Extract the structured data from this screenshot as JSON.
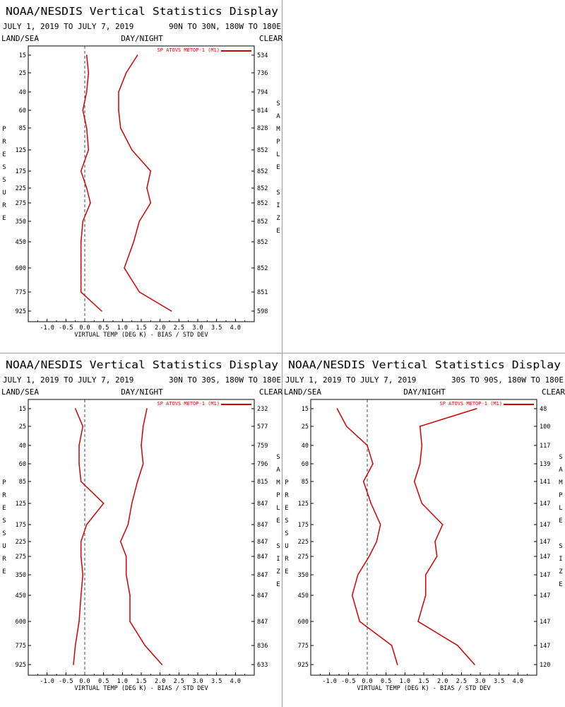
{
  "panels": [
    {
      "header_title": "NOAA/NESDIS Vertical Statistics Display",
      "date_range": "JULY 1, 2019 TO JULY 7, 2019",
      "region": "90N TO 30N, 180W TO 180E",
      "label_land_sea": "LAND/SEA",
      "label_day_night": "DAY/NIGHT",
      "label_clear": "CLEAR",
      "legend": "SP ATOVS METOP-1 (M1)",
      "left_axis_title": [
        "P",
        "R",
        "E",
        "S",
        "S",
        "U",
        "R",
        "E"
      ],
      "right_axis_title": [
        "S",
        "A",
        "M",
        "P",
        "L",
        "E",
        "",
        "S",
        "I",
        "Z",
        "E"
      ],
      "x_axis_title": "VIRTUAL TEMP (DEG K) - BIAS / STD DEV",
      "colors": {
        "series": "#d40000",
        "axes": "#000000",
        "zero_line": "#444444"
      }
    },
    {
      "header_title": "NOAA/NESDIS Vertical Statistics Display",
      "date_range": "JULY 1, 2019 TO JULY 7, 2019",
      "region": "30N TO 30S, 180W TO 180E",
      "label_land_sea": "LAND/SEA",
      "label_day_night": "DAY/NIGHT",
      "label_clear": "CLEAR",
      "legend": "SP ATOVS METOP-1 (M1)",
      "left_axis_title": [
        "P",
        "R",
        "E",
        "S",
        "S",
        "U",
        "R",
        "E"
      ],
      "right_axis_title": [
        "S",
        "A",
        "M",
        "P",
        "L",
        "E",
        "",
        "S",
        "I",
        "Z",
        "E"
      ],
      "x_axis_title": "VIRTUAL TEMP (DEG K) - BIAS / STD DEV",
      "colors": {
        "series": "#d40000",
        "axes": "#000000",
        "zero_line": "#444444"
      }
    },
    {
      "header_title": "NOAA/NESDIS Vertical Statistics Display",
      "date_range": "JULY 1, 2019 TO JULY 7, 2019",
      "region": "30S TO 90S, 180W TO 180E",
      "label_land_sea": "LAND/SEA",
      "label_day_night": "DAY/NIGHT",
      "label_clear": "CLEAR",
      "legend": "SP ATOVS METOP-1 (M1)",
      "left_axis_title": [
        "P",
        "R",
        "E",
        "S",
        "S",
        "U",
        "R",
        "E"
      ],
      "right_axis_title": [
        "S",
        "A",
        "M",
        "P",
        "L",
        "E",
        "",
        "S",
        "I",
        "Z",
        "E"
      ],
      "x_axis_title": "VIRTUAL TEMP (DEG K) - BIAS / STD DEV",
      "colors": {
        "series": "#d40000",
        "axes": "#000000",
        "zero_line": "#444444"
      }
    }
  ],
  "chart_data": [
    {
      "type": "line",
      "title": "NOAA/NESDIS Vertical Statistics Display",
      "xlabel": "VIRTUAL TEMP (DEG K) - BIAS / STD DEV",
      "ylabel": "PRESSURE",
      "xlim": [
        -1.5,
        4.5
      ],
      "x_ticks": [
        "-1.0",
        "-0.5",
        "0.0",
        "0.5",
        "1.0",
        "1.5",
        "2.0",
        "2.5",
        "3.0",
        "3.5",
        "4.0"
      ],
      "pressure_levels": [
        "15",
        "25",
        "40",
        "60",
        "85",
        "125",
        "175",
        "225",
        "275",
        "350",
        "450",
        "600",
        "775",
        "925"
      ],
      "sample_size": [
        "534",
        "736",
        "794",
        "814",
        "828",
        "852",
        "852",
        "852",
        "852",
        "852",
        "852",
        "852",
        "851",
        "598"
      ],
      "series": [
        {
          "name": "SP ATOVS METOP-1 (M1)",
          "stat": "bias",
          "values": [
            0.05,
            0.1,
            0.05,
            -0.05,
            0.05,
            0.1,
            -0.1,
            0.05,
            0.15,
            -0.05,
            -0.1,
            -0.1,
            -0.1,
            0.45
          ]
        },
        {
          "name": "SP ATOVS METOP-1 (M1)",
          "stat": "std_dev",
          "values": [
            1.4,
            1.1,
            0.9,
            0.9,
            0.95,
            1.25,
            1.75,
            1.65,
            1.75,
            1.45,
            1.3,
            1.05,
            1.45,
            2.3
          ]
        }
      ]
    },
    {
      "type": "line",
      "title": "NOAA/NESDIS Vertical Statistics Display",
      "xlabel": "VIRTUAL TEMP (DEG K) - BIAS / STD DEV",
      "ylabel": "PRESSURE",
      "xlim": [
        -1.5,
        4.5
      ],
      "x_ticks": [
        "-1.0",
        "-0.5",
        "0.0",
        "0.5",
        "1.0",
        "1.5",
        "2.0",
        "2.5",
        "3.0",
        "3.5",
        "4.0"
      ],
      "pressure_levels": [
        "15",
        "25",
        "40",
        "60",
        "85",
        "125",
        "175",
        "225",
        "275",
        "350",
        "450",
        "600",
        "775",
        "925"
      ],
      "sample_size": [
        "232",
        "577",
        "759",
        "796",
        "815",
        "847",
        "847",
        "847",
        "847",
        "847",
        "847",
        "847",
        "836",
        "633"
      ],
      "series": [
        {
          "name": "SP ATOVS METOP-1 (M1)",
          "stat": "bias",
          "values": [
            -0.25,
            -0.05,
            -0.15,
            -0.15,
            -0.1,
            0.5,
            0.05,
            -0.1,
            -0.1,
            -0.05,
            -0.1,
            -0.15,
            -0.25,
            -0.3
          ]
        },
        {
          "name": "SP ATOVS METOP-1 (M1)",
          "stat": "std_dev",
          "values": [
            1.65,
            1.55,
            1.5,
            1.55,
            1.4,
            1.25,
            1.15,
            0.95,
            1.1,
            1.1,
            1.2,
            1.2,
            1.6,
            2.05
          ]
        }
      ]
    },
    {
      "type": "line",
      "title": "NOAA/NESDIS Vertical Statistics Display",
      "xlabel": "VIRTUAL TEMP (DEG K) - BIAS / STD DEV",
      "ylabel": "PRESSURE",
      "xlim": [
        -1.5,
        4.5
      ],
      "x_ticks": [
        "-1.0",
        "-0.5",
        "0.0",
        "0.5",
        "1.0",
        "1.5",
        "2.0",
        "2.5",
        "3.0",
        "3.5",
        "4.0"
      ],
      "pressure_levels": [
        "15",
        "25",
        "40",
        "60",
        "85",
        "125",
        "175",
        "225",
        "275",
        "350",
        "450",
        "600",
        "775",
        "925"
      ],
      "sample_size": [
        "48",
        "100",
        "117",
        "139",
        "141",
        "147",
        "147",
        "147",
        "147",
        "147",
        "147",
        "147",
        "147",
        "120"
      ],
      "series": [
        {
          "name": "SP ATOVS METOP-1 (M1)",
          "stat": "bias",
          "values": [
            -0.8,
            -0.55,
            0.0,
            0.15,
            -0.1,
            0.1,
            0.35,
            0.25,
            0.05,
            -0.25,
            -0.4,
            -0.2,
            0.65,
            0.8
          ]
        },
        {
          "name": "SP ATOVS METOP-1 (M1)",
          "stat": "std_dev",
          "values": [
            2.9,
            1.4,
            1.45,
            1.4,
            1.25,
            1.45,
            2.0,
            1.8,
            1.85,
            1.55,
            1.55,
            1.35,
            2.4,
            2.85
          ]
        }
      ]
    }
  ]
}
